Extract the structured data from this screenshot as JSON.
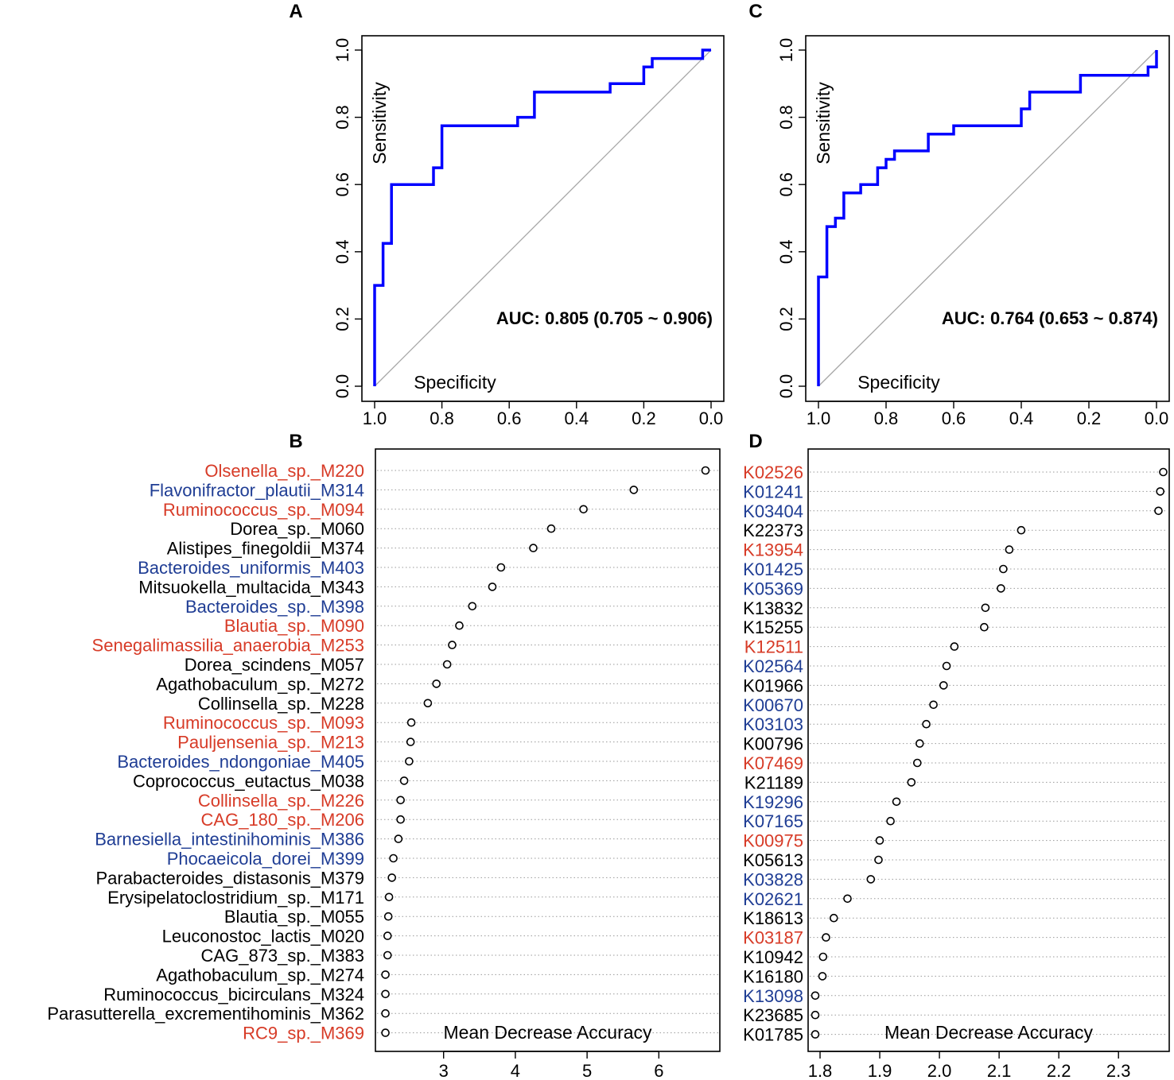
{
  "chart_data": [
    {
      "panel": "A",
      "type": "line",
      "title": "",
      "xlabel": "Specificity",
      "ylabel": "Sensitivity",
      "xlim": [
        1.0,
        0.0
      ],
      "ylim": [
        0.0,
        1.0
      ],
      "x_ticks": [
        "1.0",
        "0.8",
        "0.6",
        "0.4",
        "0.2",
        "0.0"
      ],
      "y_ticks": [
        "0.0",
        "0.2",
        "0.4",
        "0.6",
        "0.8",
        "1.0"
      ],
      "annotation": "AUC: 0.805 (0.705 ~ 0.906)",
      "color": "#0000ff",
      "diagonal": true,
      "roc_points": [
        [
          1.0,
          0.0
        ],
        [
          1.0,
          0.3
        ],
        [
          0.975,
          0.3
        ],
        [
          0.975,
          0.325
        ],
        [
          0.975,
          0.425
        ],
        [
          0.95,
          0.425
        ],
        [
          0.95,
          0.6
        ],
        [
          0.825,
          0.6
        ],
        [
          0.825,
          0.65
        ],
        [
          0.8,
          0.65
        ],
        [
          0.8,
          0.775
        ],
        [
          0.575,
          0.775
        ],
        [
          0.575,
          0.8
        ],
        [
          0.525,
          0.8
        ],
        [
          0.525,
          0.875
        ],
        [
          0.3,
          0.875
        ],
        [
          0.3,
          0.9
        ],
        [
          0.2,
          0.9
        ],
        [
          0.2,
          0.95
        ],
        [
          0.175,
          0.95
        ],
        [
          0.175,
          0.975
        ],
        [
          0.025,
          0.975
        ],
        [
          0.025,
          1.0
        ],
        [
          0.0,
          1.0
        ]
      ]
    },
    {
      "panel": "B",
      "type": "scatter",
      "xlabel": "Mean Decrease Accuracy",
      "xlim": [
        2.05,
        6.85
      ],
      "x_ticks": [
        3,
        4,
        5,
        6
      ],
      "features": [
        {
          "name": "Olsenella_sp._M220",
          "value": 6.65,
          "color": "#d73b27"
        },
        {
          "name": "Flavonifractor_plautii_M314",
          "value": 5.65,
          "color": "#1f3d94"
        },
        {
          "name": "Ruminococcus_sp._M094",
          "value": 4.95,
          "color": "#d73b27"
        },
        {
          "name": "Dorea_sp._M060",
          "value": 4.5,
          "color": "#000000"
        },
        {
          "name": "Alistipes_finegoldii_M374",
          "value": 4.25,
          "color": "#000000"
        },
        {
          "name": "Bacteroides_uniformis_M403",
          "value": 3.8,
          "color": "#1f3d94"
        },
        {
          "name": "Mitsuokella_multacida_M343",
          "value": 3.68,
          "color": "#000000"
        },
        {
          "name": "Bacteroides_sp._M398",
          "value": 3.4,
          "color": "#1f3d94"
        },
        {
          "name": "Blautia_sp._M090",
          "value": 3.22,
          "color": "#d73b27"
        },
        {
          "name": "Senegalimassilia_anaerobia_M253",
          "value": 3.12,
          "color": "#d73b27"
        },
        {
          "name": "Dorea_scindens_M057",
          "value": 3.05,
          "color": "#000000"
        },
        {
          "name": "Agathobaculum_sp._M272",
          "value": 2.9,
          "color": "#000000"
        },
        {
          "name": "Collinsella_sp._M228",
          "value": 2.78,
          "color": "#000000"
        },
        {
          "name": "Ruminococcus_sp._M093",
          "value": 2.55,
          "color": "#d73b27"
        },
        {
          "name": "Pauljensenia_sp._M213",
          "value": 2.54,
          "color": "#d73b27"
        },
        {
          "name": "Bacteroides_ndongoniae_M405",
          "value": 2.52,
          "color": "#1f3d94"
        },
        {
          "name": "Coprococcus_eutactus_M038",
          "value": 2.45,
          "color": "#000000"
        },
        {
          "name": "Collinsella_sp._M226",
          "value": 2.4,
          "color": "#d73b27"
        },
        {
          "name": "CAG_180_sp._M206",
          "value": 2.4,
          "color": "#d73b27"
        },
        {
          "name": "Barnesiella_intestinihominis_M386",
          "value": 2.37,
          "color": "#1f3d94"
        },
        {
          "name": "Phocaeicola_dorei_M399",
          "value": 2.3,
          "color": "#1f3d94"
        },
        {
          "name": "Parabacteroides_distasonis_M379",
          "value": 2.28,
          "color": "#000000"
        },
        {
          "name": "Erysipelatoclostridium_sp._M171",
          "value": 2.24,
          "color": "#000000"
        },
        {
          "name": "Blautia_sp._M055",
          "value": 2.23,
          "color": "#000000"
        },
        {
          "name": "Leuconostoc_lactis_M020",
          "value": 2.22,
          "color": "#000000"
        },
        {
          "name": "CAG_873_sp._M383",
          "value": 2.22,
          "color": "#000000"
        },
        {
          "name": "Agathobaculum_sp._M274",
          "value": 2.19,
          "color": "#000000"
        },
        {
          "name": "Ruminococcus_bicirculans_M324",
          "value": 2.19,
          "color": "#000000"
        },
        {
          "name": "Parasutterella_excrementihominis_M362",
          "value": 2.19,
          "color": "#000000"
        },
        {
          "name": "RC9_sp._M369",
          "value": 2.19,
          "color": "#d73b27"
        }
      ]
    },
    {
      "panel": "C",
      "type": "line",
      "title": "",
      "xlabel": "Specificity",
      "ylabel": "Sensitivity",
      "xlim": [
        1.0,
        0.0
      ],
      "ylim": [
        0.0,
        1.0
      ],
      "x_ticks": [
        "1.0",
        "0.8",
        "0.6",
        "0.4",
        "0.2",
        "0.0"
      ],
      "y_ticks": [
        "0.0",
        "0.2",
        "0.4",
        "0.6",
        "0.8",
        "1.0"
      ],
      "annotation": "AUC: 0.764 (0.653 ~ 0.874)",
      "color": "#0000ff",
      "diagonal": true,
      "roc_points": [
        [
          1.0,
          0.0
        ],
        [
          1.0,
          0.325
        ],
        [
          0.975,
          0.325
        ],
        [
          0.975,
          0.475
        ],
        [
          0.95,
          0.475
        ],
        [
          0.95,
          0.5
        ],
        [
          0.925,
          0.5
        ],
        [
          0.925,
          0.575
        ],
        [
          0.875,
          0.575
        ],
        [
          0.875,
          0.6
        ],
        [
          0.825,
          0.6
        ],
        [
          0.825,
          0.65
        ],
        [
          0.8,
          0.65
        ],
        [
          0.8,
          0.675
        ],
        [
          0.775,
          0.675
        ],
        [
          0.775,
          0.7
        ],
        [
          0.725,
          0.7
        ],
        [
          0.725,
          0.7
        ],
        [
          0.675,
          0.7
        ],
        [
          0.675,
          0.75
        ],
        [
          0.6,
          0.75
        ],
        [
          0.6,
          0.775
        ],
        [
          0.4,
          0.775
        ],
        [
          0.4,
          0.825
        ],
        [
          0.375,
          0.825
        ],
        [
          0.375,
          0.875
        ],
        [
          0.225,
          0.875
        ],
        [
          0.225,
          0.925
        ],
        [
          0.025,
          0.925
        ],
        [
          0.025,
          0.95
        ],
        [
          0.0,
          0.95
        ],
        [
          0.0,
          1.0
        ]
      ]
    },
    {
      "panel": "D",
      "type": "scatter",
      "xlabel": "Mean Decrease Accuracy",
      "xlim": [
        1.78,
        2.385
      ],
      "x_ticks": [
        "1.8",
        "1.9",
        "2.0",
        "2.1",
        "2.2",
        "2.3"
      ],
      "features": [
        {
          "name": "K02526",
          "value": 2.375,
          "color": "#d73b27"
        },
        {
          "name": "K01241",
          "value": 2.37,
          "color": "#1f3d94"
        },
        {
          "name": "K03404",
          "value": 2.367,
          "color": "#1f3d94"
        },
        {
          "name": "K22373",
          "value": 2.137,
          "color": "#000000"
        },
        {
          "name": "K13954",
          "value": 2.117,
          "color": "#d73b27"
        },
        {
          "name": "K01425",
          "value": 2.107,
          "color": "#1f3d94"
        },
        {
          "name": "K05369",
          "value": 2.103,
          "color": "#1f3d94"
        },
        {
          "name": "K13832",
          "value": 2.077,
          "color": "#000000"
        },
        {
          "name": "K15255",
          "value": 2.075,
          "color": "#000000"
        },
        {
          "name": "K12511",
          "value": 2.025,
          "color": "#d73b27"
        },
        {
          "name": "K02564",
          "value": 2.012,
          "color": "#1f3d94"
        },
        {
          "name": "K01966",
          "value": 2.007,
          "color": "#000000"
        },
        {
          "name": "K00670",
          "value": 1.99,
          "color": "#1f3d94"
        },
        {
          "name": "K03103",
          "value": 1.978,
          "color": "#1f3d94"
        },
        {
          "name": "K00796",
          "value": 1.967,
          "color": "#000000"
        },
        {
          "name": "K07469",
          "value": 1.963,
          "color": "#d73b27"
        },
        {
          "name": "K21189",
          "value": 1.953,
          "color": "#000000"
        },
        {
          "name": "K19296",
          "value": 1.928,
          "color": "#1f3d94"
        },
        {
          "name": "K07165",
          "value": 1.918,
          "color": "#1f3d94"
        },
        {
          "name": "K00975",
          "value": 1.9,
          "color": "#d73b27"
        },
        {
          "name": "K05613",
          "value": 1.898,
          "color": "#000000"
        },
        {
          "name": "K03828",
          "value": 1.885,
          "color": "#1f3d94"
        },
        {
          "name": "K02621",
          "value": 1.846,
          "color": "#1f3d94"
        },
        {
          "name": "K18613",
          "value": 1.823,
          "color": "#000000"
        },
        {
          "name": "K03187",
          "value": 1.81,
          "color": "#d73b27"
        },
        {
          "name": "K10942",
          "value": 1.805,
          "color": "#000000"
        },
        {
          "name": "K16180",
          "value": 1.804,
          "color": "#000000"
        },
        {
          "name": "K13098",
          "value": 1.792,
          "color": "#1f3d94"
        },
        {
          "name": "K23685",
          "value": 1.792,
          "color": "#000000"
        },
        {
          "name": "K01785",
          "value": 1.792,
          "color": "#000000"
        }
      ]
    }
  ]
}
